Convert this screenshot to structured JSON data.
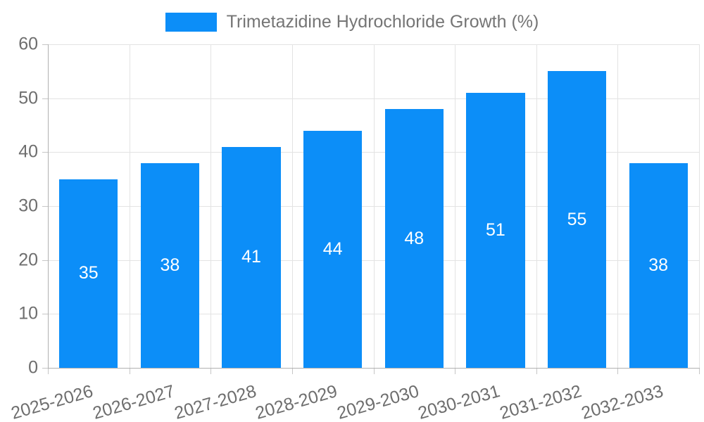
{
  "chart_data": {
    "type": "bar",
    "title": "Trimetazidine Hydrochloride Growth (%)",
    "legend": [
      "Trimetazidine Hydrochloride Growth (%)"
    ],
    "legend_position": "top",
    "categories": [
      "2025-2026",
      "2026-2027",
      "2027-2028",
      "2028-2029",
      "2029-2030",
      "2030-2031",
      "2031-2032",
      "2032-2033"
    ],
    "values": [
      35,
      38,
      41,
      44,
      48,
      51,
      55,
      38
    ],
    "xlabel": "",
    "ylabel": "",
    "ylim": [
      0,
      60
    ],
    "yticks": [
      0,
      10,
      20,
      30,
      40,
      50,
      60
    ],
    "grid": true,
    "value_labels_shown": true,
    "x_label_rotation_deg": -16,
    "colors": {
      "bar": "#0c8ef8",
      "value_label": "#ffffff",
      "axis_line": "#b0b0b0",
      "gridline": "#e3e3e3",
      "tick_mark": "#c6c6c6",
      "tick_label": "#6e6e6e",
      "legend_text": "#757575",
      "background": "#ffffff"
    }
  }
}
